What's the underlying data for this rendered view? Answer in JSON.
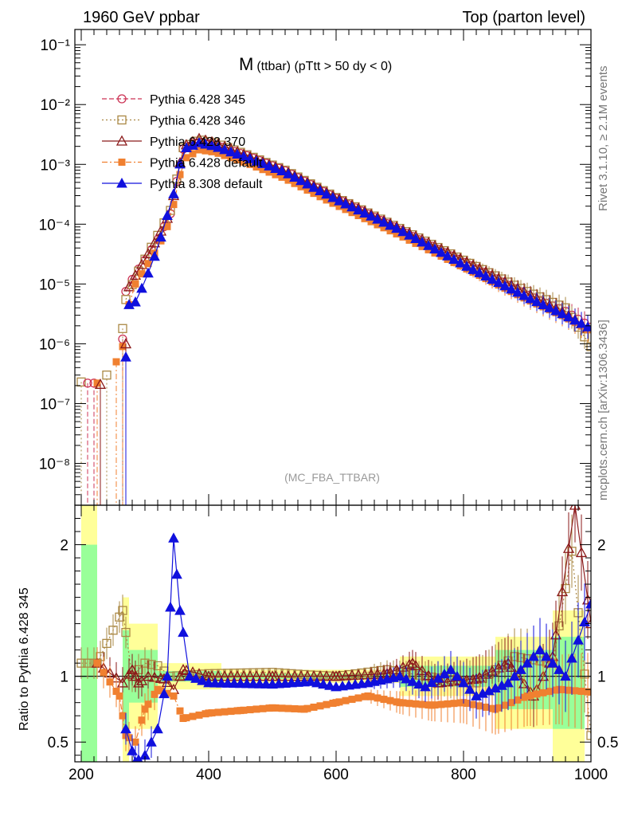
{
  "header": {
    "left": "1960 GeV ppbar",
    "right": "Top (parton level)"
  },
  "side_labels": {
    "rivet": "Rivet 3.1.10, ≥ 2.1M events",
    "source": "mcplots.cern.ch [arXiv:1306.3436]"
  },
  "watermark": "(MC_FBA_TTBAR)",
  "plot_title": {
    "main": "M",
    "sub": "(ttbar) (pTtt > 50 dy < 0)"
  },
  "colors": {
    "p345": "#cc3355",
    "p346": "#aa8844",
    "p370": "#8b1a1a",
    "p6def": "#f08030",
    "p8def": "#1010dd",
    "band_green": "#99ff99",
    "band_yellow": "#ffff99"
  },
  "chart_data": [
    {
      "type": "line",
      "scale": "log",
      "xlim": [
        190,
        1000
      ],
      "ylim": [
        2e-09,
        0.18
      ],
      "ytick_labels": [
        "10⁻⁸",
        "10⁻⁷",
        "10⁻⁶",
        "10⁻⁵",
        "10⁻⁴",
        "10⁻³",
        "10⁻²",
        "10⁻¹"
      ],
      "legend_position": "top-left",
      "series": [
        {
          "name": "Pythia 6.428 345",
          "key": "p345",
          "marker": "circle-open",
          "dash": "dashed"
        },
        {
          "name": "Pythia 6.428 346",
          "key": "p346",
          "marker": "square-open",
          "dash": "dotted"
        },
        {
          "name": "Pythia 6.428 370",
          "key": "p370",
          "marker": "triangle-open",
          "dash": "solid"
        },
        {
          "name": "Pythia 6.428 default",
          "key": "p6def",
          "marker": "square-filled",
          "dash": "dashdot"
        },
        {
          "name": "Pythia 8.308 default",
          "key": "p8def",
          "marker": "triangle-filled",
          "dash": "solid"
        }
      ],
      "points": [
        {
          "x": 200,
          "y": 2.3e-07,
          "s": "p346"
        },
        {
          "x": 210,
          "y": 2.2e-07,
          "s": "p345"
        },
        {
          "x": 220,
          "y": 2.2e-07,
          "s": "p345"
        },
        {
          "x": 225,
          "y": 2.2e-07,
          "s": "p6def"
        },
        {
          "x": 230,
          "y": 2.1e-07,
          "s": "p370"
        },
        {
          "x": 240,
          "y": 3e-07,
          "s": "p346"
        },
        {
          "x": 255,
          "y": 5e-07,
          "s": "p6def"
        },
        {
          "x": 265,
          "y": 1.2e-06,
          "s": "p345"
        },
        {
          "x": 265,
          "y": 1.8e-06,
          "s": "p346"
        },
        {
          "x": 265,
          "y": 9e-07,
          "s": "p6def"
        },
        {
          "x": 270,
          "y": 1e-06,
          "s": "p370"
        },
        {
          "x": 270,
          "y": 6e-07,
          "s": "p8def"
        }
      ],
      "curves": {
        "p345": [
          [
            270,
            7.5e-06
          ],
          [
            285,
            1.5e-05
          ],
          [
            300,
            2.5e-05
          ],
          [
            320,
            5.5e-05
          ],
          [
            340,
            0.00015
          ],
          [
            360,
            0.0018
          ],
          [
            385,
            0.0024
          ],
          [
            410,
            0.0021
          ],
          [
            460,
            0.0014
          ],
          [
            520,
            0.00078
          ],
          [
            600,
            0.00027
          ],
          [
            700,
            8e-05
          ],
          [
            800,
            2.3e-05
          ],
          [
            900,
            6.5e-06
          ],
          [
            960,
            3.5e-06
          ],
          [
            1000,
            1.9e-06
          ]
        ],
        "p346": [
          [
            270,
            5.5e-06
          ],
          [
            285,
            1.3e-05
          ],
          [
            300,
            2.6e-05
          ],
          [
            320,
            6.5e-05
          ],
          [
            340,
            0.00017
          ],
          [
            360,
            0.0019
          ],
          [
            385,
            0.0026
          ],
          [
            410,
            0.0023
          ],
          [
            460,
            0.00145
          ],
          [
            520,
            0.0008
          ],
          [
            600,
            0.00028
          ],
          [
            700,
            8.5e-05
          ],
          [
            800,
            2.5e-05
          ],
          [
            900,
            7.5e-06
          ],
          [
            960,
            4e-06
          ],
          [
            1000,
            9e-07
          ]
        ],
        "p370": [
          [
            275,
            9e-06
          ],
          [
            285,
            1.4e-05
          ],
          [
            300,
            2.6e-05
          ],
          [
            320,
            6e-05
          ],
          [
            340,
            0.00016
          ],
          [
            360,
            0.002
          ],
          [
            385,
            0.0027
          ],
          [
            410,
            0.0023
          ],
          [
            460,
            0.0014
          ],
          [
            520,
            0.00078
          ],
          [
            600,
            0.00028
          ],
          [
            700,
            8.5e-05
          ],
          [
            800,
            2.5e-05
          ],
          [
            900,
            7e-06
          ],
          [
            960,
            3.2e-06
          ],
          [
            1000,
            1.7e-06
          ]
        ],
        "p6def": [
          [
            275,
            4.5e-06
          ],
          [
            285,
            1e-05
          ],
          [
            300,
            1.8e-05
          ],
          [
            320,
            4e-05
          ],
          [
            340,
            0.00012
          ],
          [
            360,
            0.0012
          ],
          [
            385,
            0.00175
          ],
          [
            410,
            0.0016
          ],
          [
            460,
            0.00105
          ],
          [
            520,
            0.00058
          ],
          [
            600,
            0.00021
          ],
          [
            700,
            6.5e-05
          ],
          [
            800,
            1.9e-05
          ],
          [
            900,
            5.5e-06
          ],
          [
            960,
            2.8e-06
          ],
          [
            1000,
            1.6e-06
          ]
        ],
        "p8def": [
          [
            275,
            4.5e-06
          ],
          [
            285,
            5e-06
          ],
          [
            300,
            1.1e-05
          ],
          [
            320,
            4e-05
          ],
          [
            345,
            0.00032
          ],
          [
            360,
            0.0018
          ],
          [
            385,
            0.0023
          ],
          [
            410,
            0.002
          ],
          [
            460,
            0.0013
          ],
          [
            520,
            0.00074
          ],
          [
            600,
            0.00026
          ],
          [
            700,
            8e-05
          ],
          [
            800,
            2.1e-05
          ],
          [
            900,
            6e-06
          ],
          [
            960,
            3e-06
          ],
          [
            1000,
            1.8e-06
          ]
        ]
      }
    },
    {
      "type": "line",
      "xlim": [
        190,
        1000
      ],
      "ylim": [
        0.35,
        2.3
      ],
      "xticks": [
        200,
        400,
        600,
        800,
        1000
      ],
      "yticks": [
        0.5,
        1,
        2
      ],
      "ylabel": "Ratio to Pythia 6.428 345",
      "reference": 1,
      "series": {
        "p346": [
          [
            200,
            1.1
          ],
          [
            225,
            1.1
          ],
          [
            265,
            1.5
          ],
          [
            280,
            1.0
          ],
          [
            300,
            1.1
          ],
          [
            320,
            1.08
          ],
          [
            340,
            1.0
          ],
          [
            400,
            1.02
          ],
          [
            500,
            1.03
          ],
          [
            560,
            1.01
          ],
          [
            600,
            1.0
          ],
          [
            680,
            1.05
          ],
          [
            740,
            1.0
          ],
          [
            820,
            0.95
          ],
          [
            880,
            1.15
          ],
          [
            940,
            1.1
          ],
          [
            970,
            1.95
          ],
          [
            1000,
            0.55
          ]
        ],
        "p370": [
          [
            225,
            1.1
          ],
          [
            265,
            0.95
          ],
          [
            280,
            1.05
          ],
          [
            290,
            0.95
          ],
          [
            305,
            1.0
          ],
          [
            330,
            0.98
          ],
          [
            345,
            0.9
          ],
          [
            360,
            1.05
          ],
          [
            400,
            1.0
          ],
          [
            500,
            1.0
          ],
          [
            600,
            1.0
          ],
          [
            680,
            1.02
          ],
          [
            720,
            1.1
          ],
          [
            760,
            0.95
          ],
          [
            820,
            0.98
          ],
          [
            870,
            1.1
          ],
          [
            910,
            0.85
          ],
          [
            940,
            1.15
          ],
          [
            975,
            2.3
          ],
          [
            1000,
            1.4
          ]
        ],
        "p6def": [
          [
            225,
            1.1
          ],
          [
            260,
            0.85
          ],
          [
            270,
            0.55
          ],
          [
            285,
            0.5
          ],
          [
            300,
            0.75
          ],
          [
            320,
            0.9
          ],
          [
            345,
            0.85
          ],
          [
            360,
            0.68
          ],
          [
            400,
            0.72
          ],
          [
            450,
            0.74
          ],
          [
            500,
            0.76
          ],
          [
            550,
            0.75
          ],
          [
            600,
            0.8
          ],
          [
            650,
            0.85
          ],
          [
            700,
            0.8
          ],
          [
            750,
            0.78
          ],
          [
            800,
            0.8
          ],
          [
            850,
            0.75
          ],
          [
            900,
            0.85
          ],
          [
            950,
            0.9
          ],
          [
            1000,
            0.88
          ]
        ],
        "p8def": [
          [
            270,
            0.6
          ],
          [
            285,
            0.35
          ],
          [
            300,
            0.4
          ],
          [
            320,
            0.6
          ],
          [
            335,
            1.0
          ],
          [
            345,
            2.05
          ],
          [
            355,
            1.5
          ],
          [
            370,
            1.0
          ],
          [
            400,
            0.95
          ],
          [
            500,
            0.94
          ],
          [
            560,
            0.96
          ],
          [
            600,
            0.92
          ],
          [
            650,
            0.95
          ],
          [
            700,
            1.0
          ],
          [
            740,
            0.92
          ],
          [
            780,
            1.05
          ],
          [
            820,
            0.85
          ],
          [
            870,
            0.95
          ],
          [
            920,
            1.2
          ],
          [
            960,
            1.0
          ],
          [
            1000,
            1.55
          ]
        ]
      }
    }
  ]
}
